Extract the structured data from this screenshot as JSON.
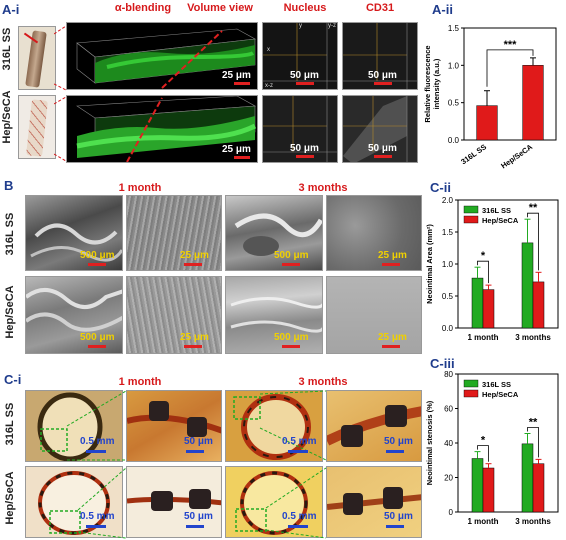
{
  "panels": {
    "ai": "A-i",
    "aii": "A-ii",
    "b": "B",
    "cii": "C-ii",
    "ci": "C-i",
    "ciii": "C-iii"
  },
  "a": {
    "headers": {
      "alpha": "α-blending",
      "volume": "Volume view",
      "nucleus": "Nucleus",
      "cd31": "CD31"
    },
    "rows": [
      "316L SS",
      "Hep/SeCA"
    ],
    "scale": {
      "vol": "25 μm",
      "conf": "50 μm"
    },
    "axis_marks": {
      "y": "y",
      "x": "x",
      "yz": "y-z",
      "xz": "x-z"
    }
  },
  "b": {
    "headers": [
      "1 month",
      "3 months"
    ],
    "rows": [
      "316L SS",
      "Hep/SeCA"
    ],
    "scale": {
      "low": "500 μm",
      "high": "25 μm"
    }
  },
  "ci": {
    "headers": [
      "1 month",
      "3 months"
    ],
    "rows": [
      "316L SS",
      "Hep/SeCA"
    ],
    "scale": {
      "low": "0.5 mm",
      "high": "50 μm"
    }
  },
  "colors": {
    "ss": "#22aa22",
    "hep": "#e01a1a",
    "panel_label": "#1f3c8c",
    "header": "#d6191b"
  },
  "chart_data": [
    {
      "id": "aii",
      "type": "bar",
      "categories": [
        "316L SS",
        "Hep/SeCA"
      ],
      "values": [
        0.46,
        1.0
      ],
      "errors": [
        0.2,
        0.1
      ],
      "ylabel": "Relative fluorescence\nintensity (a.u.)",
      "ylim": [
        0.0,
        1.5
      ],
      "yticks": [
        "0.0",
        "0.5",
        "1.0",
        "1.5"
      ],
      "annotation": "***",
      "bar_colors": [
        "#e01a1a",
        "#e01a1a"
      ]
    },
    {
      "id": "cii",
      "type": "bar",
      "categories": [
        "1 month",
        "3 months"
      ],
      "series": [
        {
          "name": "316L SS",
          "values": [
            0.78,
            1.33
          ],
          "errors": [
            0.17,
            0.37
          ],
          "color": "#22aa22"
        },
        {
          "name": "Hep/SeCA",
          "values": [
            0.6,
            0.72
          ],
          "errors": [
            0.07,
            0.15
          ],
          "color": "#e01a1a"
        }
      ],
      "ylabel": "Neointimal Area (mm²)",
      "ylim": [
        0.0,
        2.0
      ],
      "yticks": [
        "0.0",
        "0.5",
        "1.0",
        "1.5",
        "2.0"
      ],
      "annotations": [
        "*",
        "**"
      ],
      "legend": "top-left"
    },
    {
      "id": "ciii",
      "type": "bar",
      "categories": [
        "1 month",
        "3 months"
      ],
      "series": [
        {
          "name": "316L SS",
          "values": [
            31,
            39.5
          ],
          "errors": [
            4,
            6
          ],
          "color": "#22aa22"
        },
        {
          "name": "Hep/SeCA",
          "values": [
            25.5,
            28
          ],
          "errors": [
            2.5,
            2.5
          ],
          "color": "#e01a1a"
        }
      ],
      "ylabel": "Neointimal stenosis (%)",
      "ylim": [
        0,
        80
      ],
      "yticks": [
        "0",
        "20",
        "40",
        "60",
        "80"
      ],
      "annotations": [
        "*",
        "**"
      ],
      "legend": "top-left"
    }
  ]
}
